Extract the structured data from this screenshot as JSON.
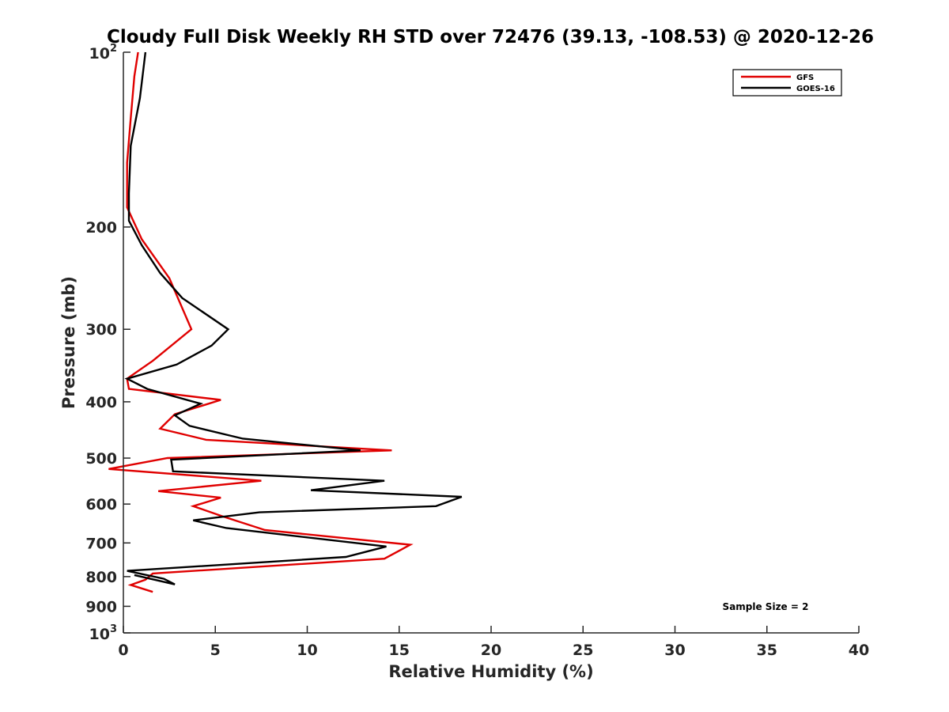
{
  "chart_data": {
    "type": "line",
    "title": "Cloudy Full Disk Weekly RH STD over 72476 (39.13, -108.53) @ 2020-12-26",
    "xlabel": "Relative Humidity (%)",
    "ylabel": "Pressure (mb)",
    "xlim": [
      0,
      40
    ],
    "ylim": [
      100,
      1000
    ],
    "y_scale": "log",
    "y_reversed": true,
    "grid": false,
    "legend_position": "top-right",
    "x_ticks": [
      "0",
      "5",
      "10",
      "15",
      "20",
      "25",
      "30",
      "35",
      "40"
    ],
    "y_ticks": [
      {
        "value": 100,
        "base": "10",
        "exp": "2"
      },
      {
        "value": 200,
        "label": "200"
      },
      {
        "value": 300,
        "label": "300"
      },
      {
        "value": 400,
        "label": "400"
      },
      {
        "value": 500,
        "label": "500"
      },
      {
        "value": 600,
        "label": "600"
      },
      {
        "value": 700,
        "label": "700"
      },
      {
        "value": 800,
        "label": "800"
      },
      {
        "value": 900,
        "label": "900"
      },
      {
        "value": 1000,
        "base": "10",
        "exp": "3"
      }
    ],
    "annotation": "Sample Size = 2",
    "series": [
      {
        "name": "GFS",
        "color": "#e00000",
        "points": [
          [
            0.8,
            100
          ],
          [
            0.6,
            110
          ],
          [
            0.4,
            130
          ],
          [
            0.2,
            155
          ],
          [
            0.2,
            185
          ],
          [
            1.0,
            210
          ],
          [
            2.5,
            245
          ],
          [
            3.7,
            300
          ],
          [
            1.6,
            340
          ],
          [
            0.2,
            365
          ],
          [
            0.3,
            380
          ],
          [
            5.3,
            397
          ],
          [
            2.8,
            420
          ],
          [
            2.0,
            445
          ],
          [
            4.5,
            465
          ],
          [
            14.6,
            485
          ],
          [
            2.4,
            500
          ],
          [
            -0.8,
            522
          ],
          [
            7.5,
            547
          ],
          [
            1.9,
            570
          ],
          [
            5.3,
            585
          ],
          [
            3.8,
            605
          ],
          [
            5.4,
            630
          ],
          [
            7.7,
            665
          ],
          [
            15.6,
            705
          ],
          [
            14.2,
            745
          ],
          [
            1.6,
            790
          ],
          [
            1.2,
            810
          ],
          [
            0.4,
            827
          ],
          [
            1.6,
            850
          ]
        ]
      },
      {
        "name": "GOES-16",
        "color": "#000000",
        "points": [
          [
            1.2,
            100
          ],
          [
            0.9,
            120
          ],
          [
            0.4,
            145
          ],
          [
            0.3,
            175
          ],
          [
            0.3,
            195
          ],
          [
            1.0,
            215
          ],
          [
            2.0,
            240
          ],
          [
            3.2,
            265
          ],
          [
            5.7,
            300
          ],
          [
            4.8,
            320
          ],
          [
            2.9,
            345
          ],
          [
            0.2,
            365
          ],
          [
            1.3,
            380
          ],
          [
            4.2,
            403
          ],
          [
            2.8,
            422
          ],
          [
            3.6,
            440
          ],
          [
            6.5,
            463
          ],
          [
            12.9,
            485
          ],
          [
            2.6,
            503
          ],
          [
            2.7,
            527
          ],
          [
            14.2,
            547
          ],
          [
            10.2,
            568
          ],
          [
            18.4,
            583
          ],
          [
            17.0,
            605
          ],
          [
            7.4,
            620
          ],
          [
            3.8,
            640
          ],
          [
            5.6,
            660
          ],
          [
            10.9,
            690
          ],
          [
            14.3,
            710
          ],
          [
            12.1,
            740
          ],
          [
            0.2,
            782
          ],
          [
            2.2,
            807
          ],
          [
            2.8,
            825
          ],
          [
            0.6,
            795
          ]
        ]
      }
    ]
  }
}
